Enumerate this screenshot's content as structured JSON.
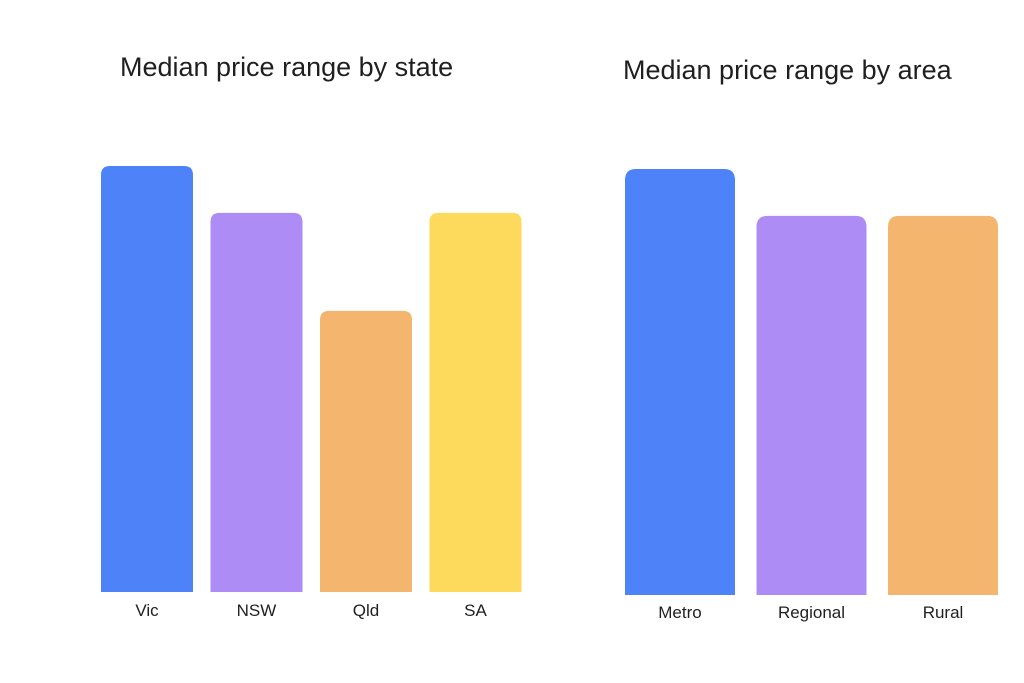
{
  "chart_data": [
    {
      "type": "bar",
      "title": "Median price range by state",
      "categories": [
        "Vic",
        "NSW",
        "Qld",
        "SA"
      ],
      "values": [
        100,
        89,
        66,
        89
      ],
      "colors": [
        "#4d82f8",
        "#ad8cf6",
        "#f4b66f",
        "#fdda5b"
      ],
      "ylim": [
        0,
        100
      ],
      "grid": false,
      "legend": "none"
    },
    {
      "type": "bar",
      "title": "Median price range by area",
      "categories": [
        "Metro",
        "Regional",
        "Rural"
      ],
      "values": [
        100,
        89,
        89
      ],
      "colors": [
        "#4d82f8",
        "#ad8cf6",
        "#f4b66f"
      ],
      "ylim": [
        0,
        100
      ],
      "grid": false,
      "legend": "none"
    }
  ]
}
